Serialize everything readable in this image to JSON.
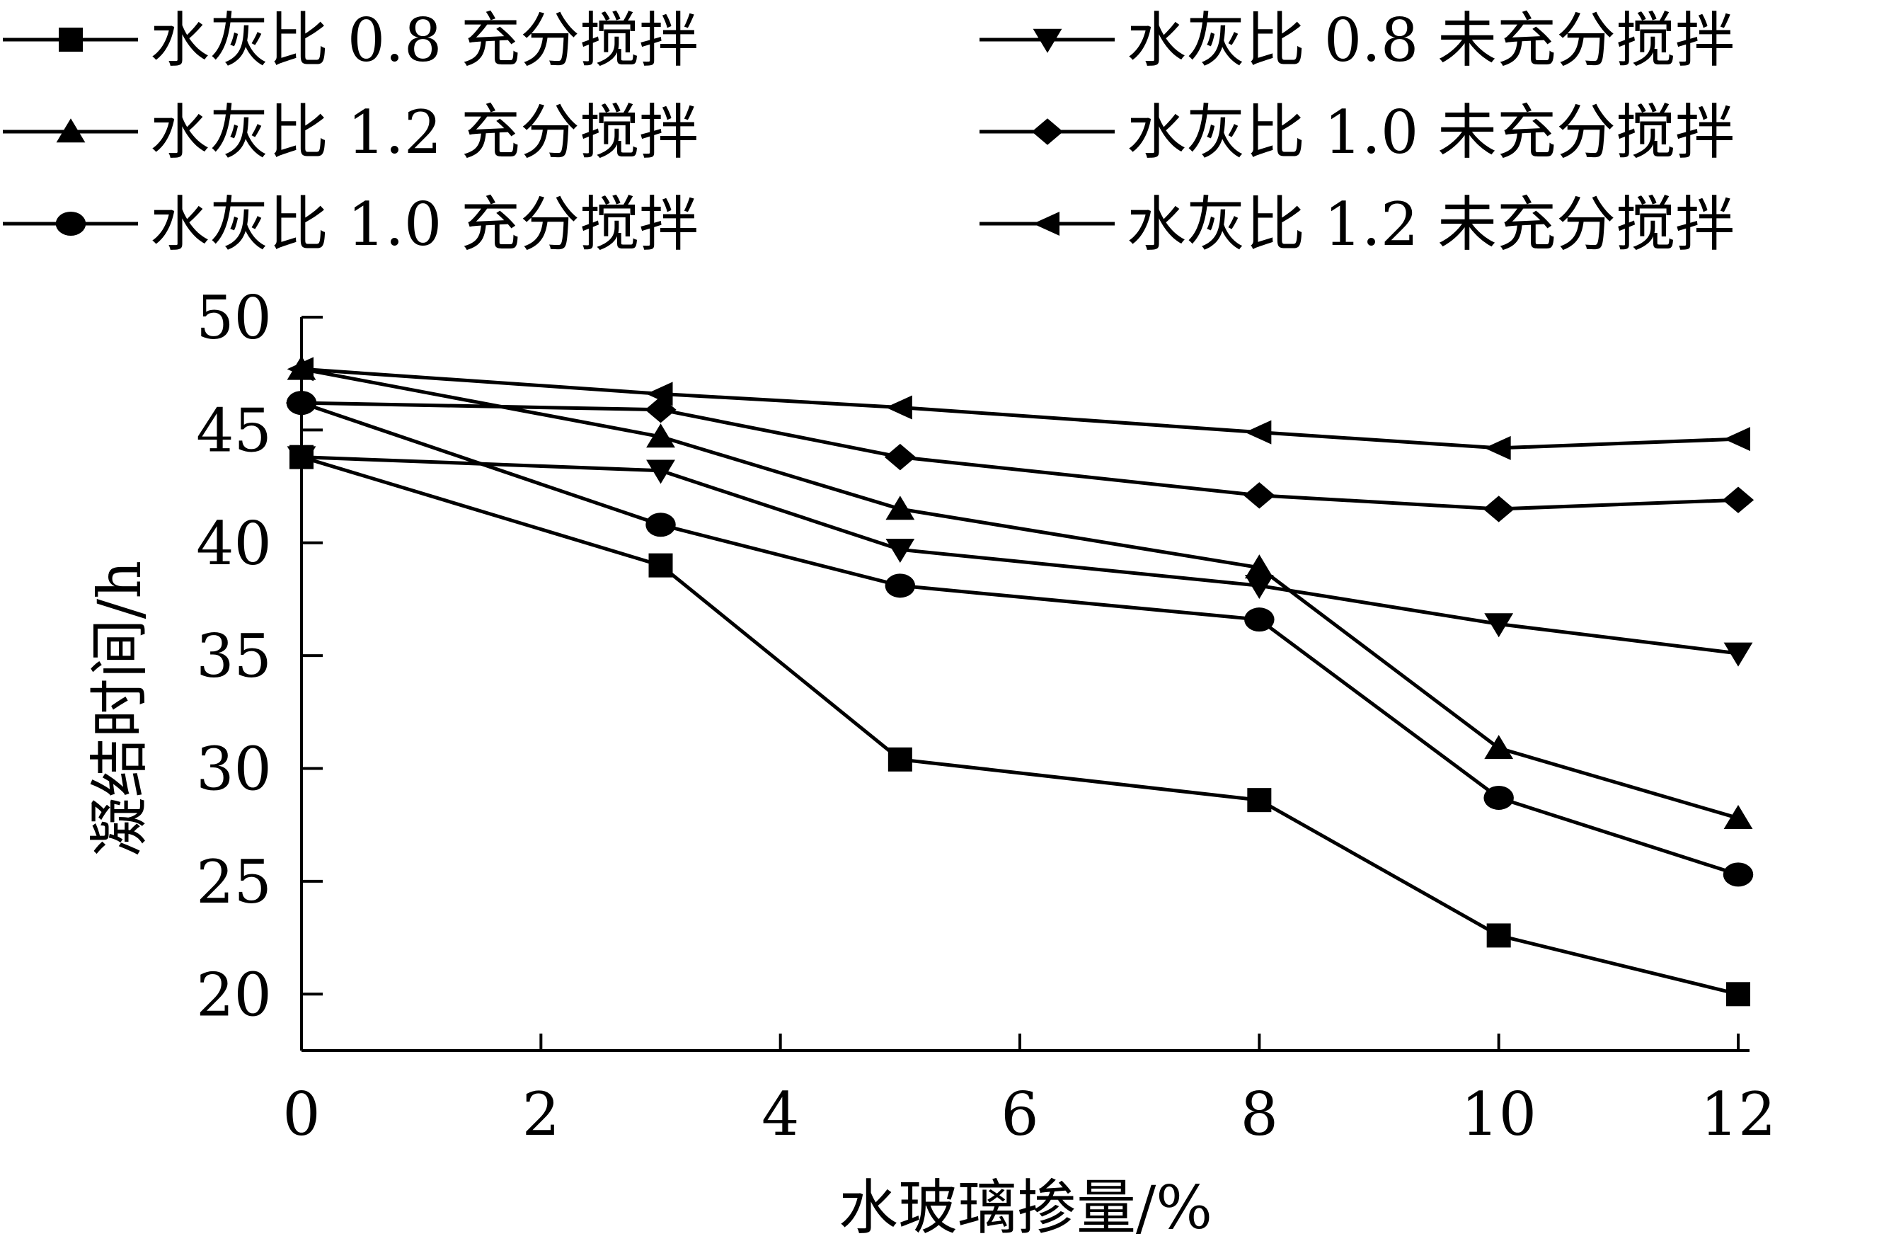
{
  "chart_data": {
    "type": "line",
    "title": "",
    "xlabel": "水玻璃掺量/%",
    "ylabel": "凝结时间/h",
    "xlim": [
      0,
      12
    ],
    "ylim": [
      17.5,
      50
    ],
    "xticks": [
      0,
      2,
      4,
      6,
      8,
      10,
      12
    ],
    "yticks": [
      20,
      25,
      30,
      35,
      40,
      45,
      50
    ],
    "grid": false,
    "legend_position": "top",
    "line_color": "#000000",
    "series": [
      {
        "name": "水灰比 0.8 充分搅拌",
        "marker": "square",
        "x": [
          0,
          3,
          5,
          8,
          10,
          12
        ],
        "y": [
          43.8,
          39.0,
          30.4,
          28.6,
          22.6,
          20.0
        ]
      },
      {
        "name": "水灰比 1.2 充分搅拌",
        "marker": "triangle-up",
        "x": [
          0,
          3,
          5,
          8,
          10,
          12
        ],
        "y": [
          47.7,
          44.7,
          41.5,
          38.9,
          30.9,
          27.8
        ]
      },
      {
        "name": "水灰比 1.0 充分搅拌",
        "marker": "circle",
        "x": [
          0,
          3,
          5,
          8,
          10,
          12
        ],
        "y": [
          46.2,
          40.8,
          38.1,
          36.6,
          28.7,
          25.3
        ]
      },
      {
        "name": "水灰比 0.8 未充分搅拌",
        "marker": "triangle-down",
        "x": [
          0,
          3,
          5,
          8,
          10,
          12
        ],
        "y": [
          43.8,
          43.2,
          39.7,
          38.1,
          36.4,
          35.1
        ]
      },
      {
        "name": "水灰比 1.0 未充分搅拌",
        "marker": "diamond",
        "x": [
          0,
          3,
          5,
          8,
          10,
          12
        ],
        "y": [
          46.2,
          45.9,
          43.8,
          42.1,
          41.5,
          41.9
        ]
      },
      {
        "name": "水灰比 1.2 未充分搅拌",
        "marker": "triangle-left",
        "x": [
          0,
          3,
          5,
          8,
          10,
          12
        ],
        "y": [
          47.7,
          46.6,
          46.0,
          44.9,
          44.2,
          44.6
        ]
      }
    ]
  }
}
